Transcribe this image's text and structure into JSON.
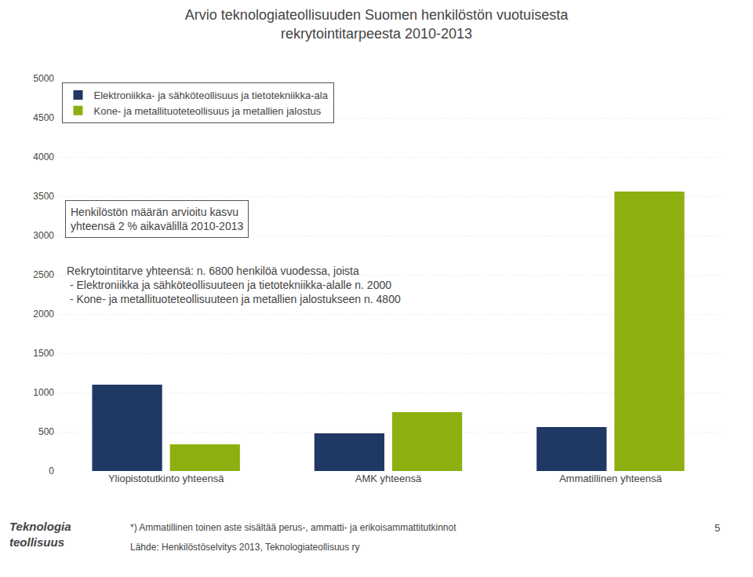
{
  "chart_data": {
    "type": "bar",
    "title": "Arvio teknologiateollisuuden Suomen henkilöstön vuotuisesta\nrekrytointitarpeesta 2010-2013",
    "categories": [
      "Yliopistotutkinto yhteensä",
      "AMK yhteensä",
      "Ammatillinen yhteensä"
    ],
    "series": [
      {
        "name": "Elektroniikka- ja sähköteollisuus ja tietotekniikka-ala",
        "color": "#1f3864",
        "values": [
          1100,
          480,
          560
        ]
      },
      {
        "name": "Kone- ja metallituoteteollisuus ja metallien jalostus",
        "color": "#8db010",
        "values": [
          340,
          750,
          3560
        ]
      }
    ],
    "ylim": [
      0,
      5000
    ],
    "yticks": [
      0,
      500,
      1000,
      1500,
      2000,
      2500,
      3000,
      3500,
      4000,
      4500,
      5000
    ],
    "grid": true,
    "legend": "upper left",
    "annotations": [
      "Henkilöstön määrän arvioitu kasvu\nyhteensä 2 % aikavälillä 2010-2013",
      "Rekrytointitarve yhteensä: n. 6800 henkilöä vuodessa, joista\n - Elektroniikka ja sähköteollisuuteen ja tietotekniikka-alalle n. 2000\n - Kone- ja metallituoteteollisuuteen ja metallien jalostukseen n. 4800",
      "*) Ammatillinen toinen aste sisältää perus-, ammatti- ja erikoisammattitutkinnot",
      "Lähde: Henkilöstöselvitys 2013, Teknologiateollisuus ry",
      "5",
      "Teknologia\nteollisuus"
    ]
  }
}
